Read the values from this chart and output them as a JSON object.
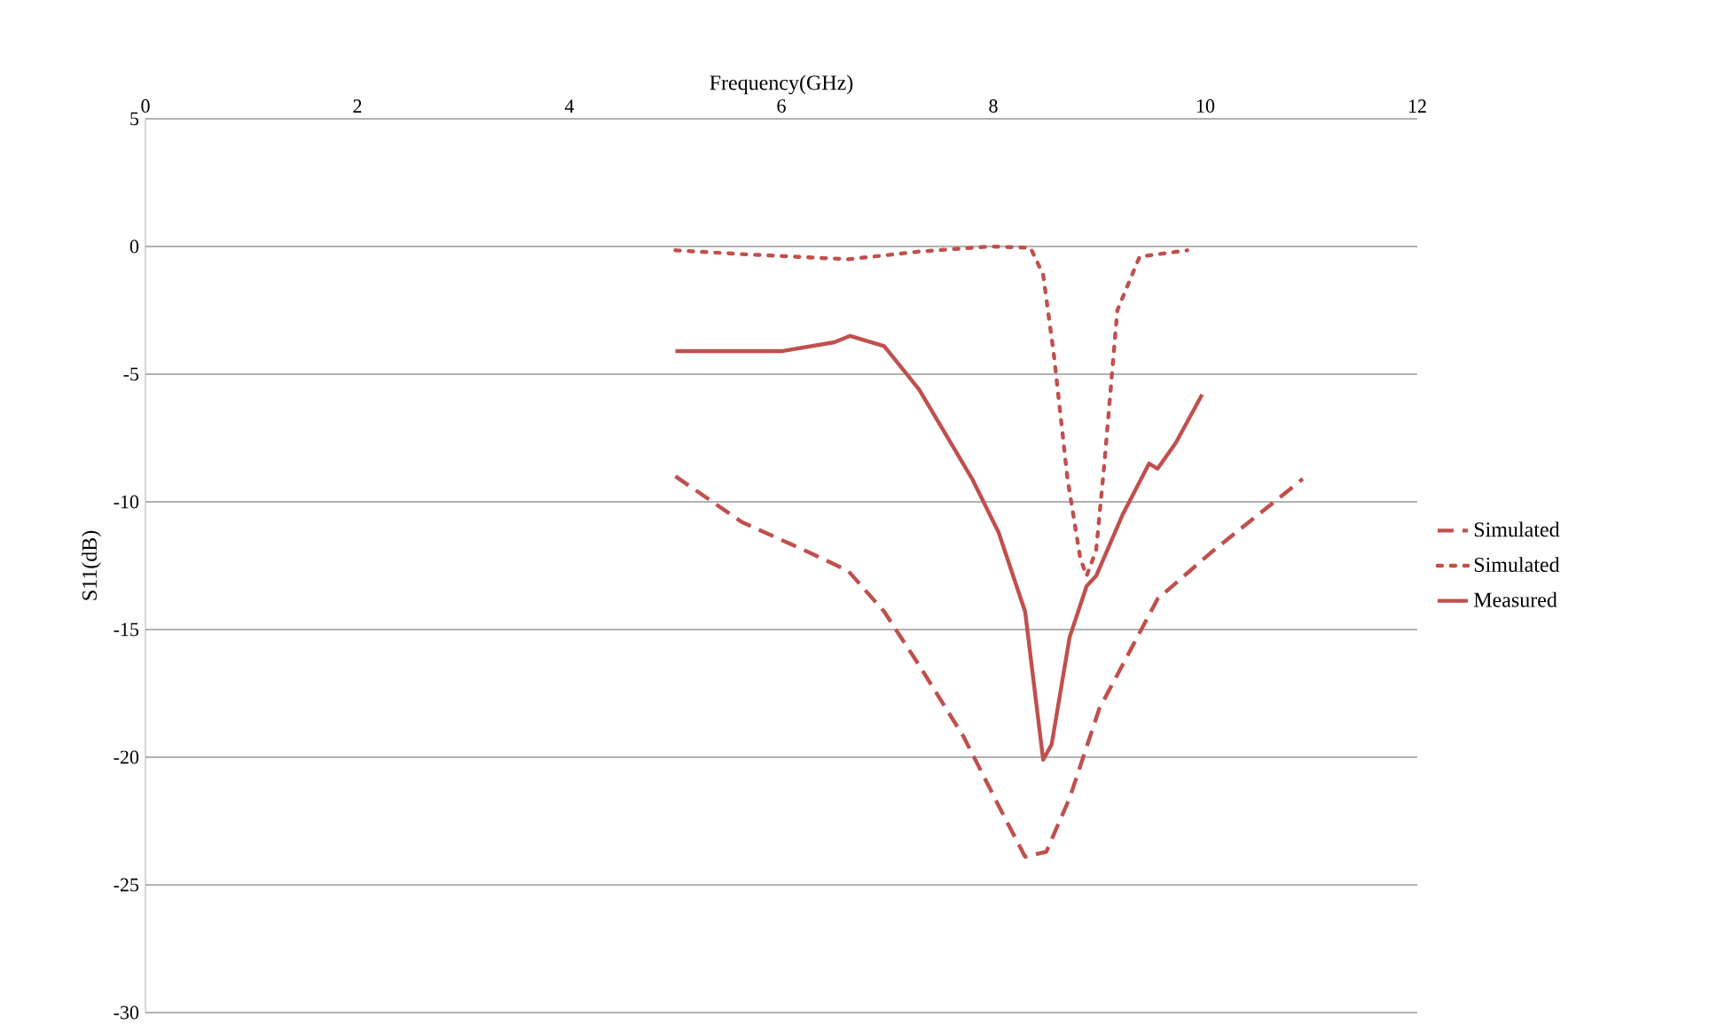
{
  "chart_data": {
    "type": "line",
    "xlabel": "Frequency(GHz)",
    "ylabel": "S11(dB)",
    "xlim": [
      0,
      12
    ],
    "xticks": [
      0,
      2,
      4,
      6,
      8,
      10,
      12
    ],
    "ylim": [
      -30,
      5
    ],
    "yticks": [
      -30,
      -25,
      -20,
      -15,
      -10,
      -5,
      0,
      5
    ],
    "grid": "y",
    "legend": "right",
    "marker": "none",
    "series": [
      {
        "name": "Simulated",
        "color": "#c0504d",
        "line_style": "dashed",
        "x": [
          5,
          5.63,
          6.22,
          6.63,
          6.97,
          7.3,
          7.72,
          8.05,
          8.3,
          8.5,
          8.72,
          9.0,
          9.55,
          10.05,
          10.92
        ],
        "values": [
          -9,
          -10.8,
          -11.9,
          -12.7,
          -14.3,
          -16.4,
          -19.2,
          -21.9,
          -23.9,
          -23.7,
          -21.6,
          -18.1,
          -13.8,
          -12,
          -9.1
        ]
      },
      {
        "name": "Simulated",
        "color": "#c0504d",
        "line_style": "dotted",
        "x": [
          5,
          5.63,
          6.63,
          7.3,
          7.97,
          8.35,
          8.47,
          8.57,
          8.7,
          8.82,
          8.88,
          8.97,
          9.05,
          9.17,
          9.38,
          9.83
        ],
        "values": [
          -0.15,
          -0.3,
          -0.5,
          -0.2,
          0,
          -0.05,
          -1.1,
          -4.2,
          -9.1,
          -12.2,
          -12.9,
          -11.9,
          -8.4,
          -2.5,
          -0.4,
          -0.15
        ]
      },
      {
        "name": "Measured",
        "color": "#c0504d",
        "line_style": "solid",
        "x": [
          5,
          6,
          6.5,
          6.65,
          6.97,
          7.3,
          7.8,
          8.05,
          8.3,
          8.47,
          8.55,
          8.72,
          8.88,
          8.97,
          9.22,
          9.47,
          9.55,
          9.72,
          9.97
        ],
        "values": [
          -4.1,
          -4.1,
          -3.75,
          -3.5,
          -3.9,
          -5.6,
          -9.1,
          -11.2,
          -14.3,
          -20.1,
          -19.5,
          -15.3,
          -13.3,
          -12.9,
          -10.5,
          -8.5,
          -8.7,
          -7.7,
          -5.8
        ]
      }
    ]
  }
}
